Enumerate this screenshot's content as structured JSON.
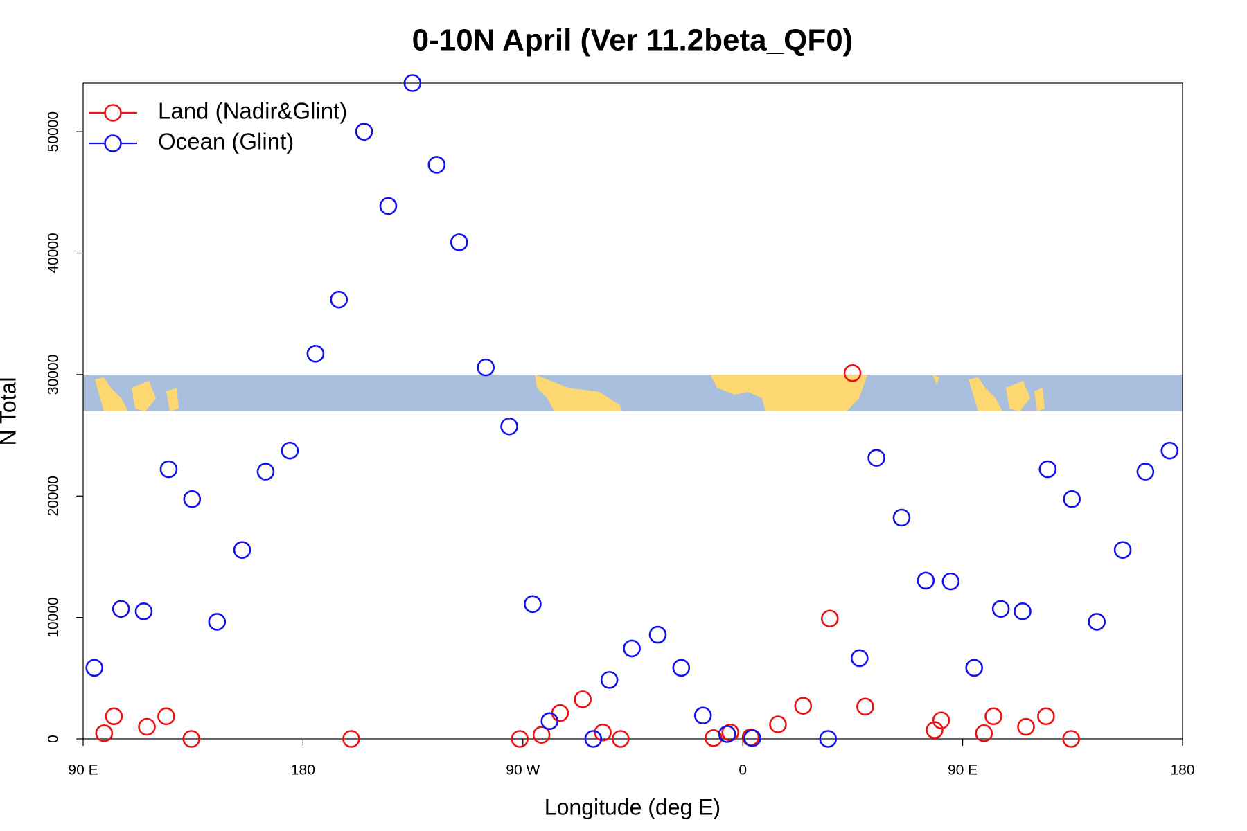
{
  "chart_data": {
    "type": "scatter",
    "title": "0-10N April (Ver 11.2beta_QF0)",
    "x_label": "Longitude (deg E)",
    "y_label": "N Total",
    "xlim": [
      90,
      540
    ],
    "ylim": [
      0,
      54000
    ],
    "xticks": [
      {
        "value": 90,
        "label": "90 E"
      },
      180,
      {
        "value": 270,
        "label": "90 W"
      },
      {
        "value": 360,
        "label": "0"
      },
      {
        "value": 450,
        "label": "90 E"
      },
      {
        "value": 540,
        "label": "180"
      }
    ],
    "yticks": [
      0,
      10000,
      20000,
      30000,
      40000,
      50000
    ],
    "legend": "top-left",
    "series": [
      {
        "name": "Land (Nadir&Glint)",
        "color": "#ee1111",
        "x": [
          98.6,
          102.6,
          116.1,
          124.0,
          134.3,
          199.7,
          268.7,
          277.6,
          285.2,
          294.5,
          302.7,
          310.0,
          348.0,
          354.9,
          363.2,
          374.4,
          384.7,
          395.6,
          404.9,
          410.1,
          438.5,
          441.2,
          458.7,
          462.6,
          475.9,
          484.1,
          494.4
        ],
        "values": [
          465,
          1862,
          997,
          1862,
          0,
          0,
          0,
          332,
          2128,
          3258,
          532,
          0,
          66,
          532,
          133,
          1197,
          2726,
          9907,
          30120,
          2660,
          731,
          1529,
          465,
          1862,
          997,
          1862,
          0
        ]
      },
      {
        "name": "Ocean (Glint)",
        "color": "#1111ee",
        "x": [
          94.6,
          105.5,
          114.8,
          125.0,
          134.6,
          144.8,
          155.1,
          164.7,
          174.6,
          185.1,
          194.7,
          205.0,
          214.9,
          224.8,
          234.7,
          243.9,
          254.8,
          264.4,
          274.0,
          280.9,
          298.8,
          305.4,
          314.6,
          325.2,
          334.8,
          343.7,
          353.6,
          363.9,
          394.9,
          407.8,
          414.7,
          425.0,
          434.9,
          445.1,
          454.7,
          465.6,
          474.5,
          484.8,
          494.7,
          504.9,
          515.5,
          524.8,
          534.7
        ],
        "values": [
          5851,
          10705,
          10505,
          22207,
          19747,
          9641,
          15559,
          22008,
          23737,
          31715,
          36170,
          50000,
          43883,
          54000,
          47274,
          40891,
          30585,
          25731,
          11104,
          1463,
          0,
          4854,
          7447,
          8577,
          5851,
          1928,
          399,
          66,
          0,
          6649,
          23138,
          18218,
          13032,
          12965,
          5851,
          10705,
          10505,
          22207,
          19747,
          9641,
          15559,
          22008,
          23737
        ]
      }
    ]
  }
}
